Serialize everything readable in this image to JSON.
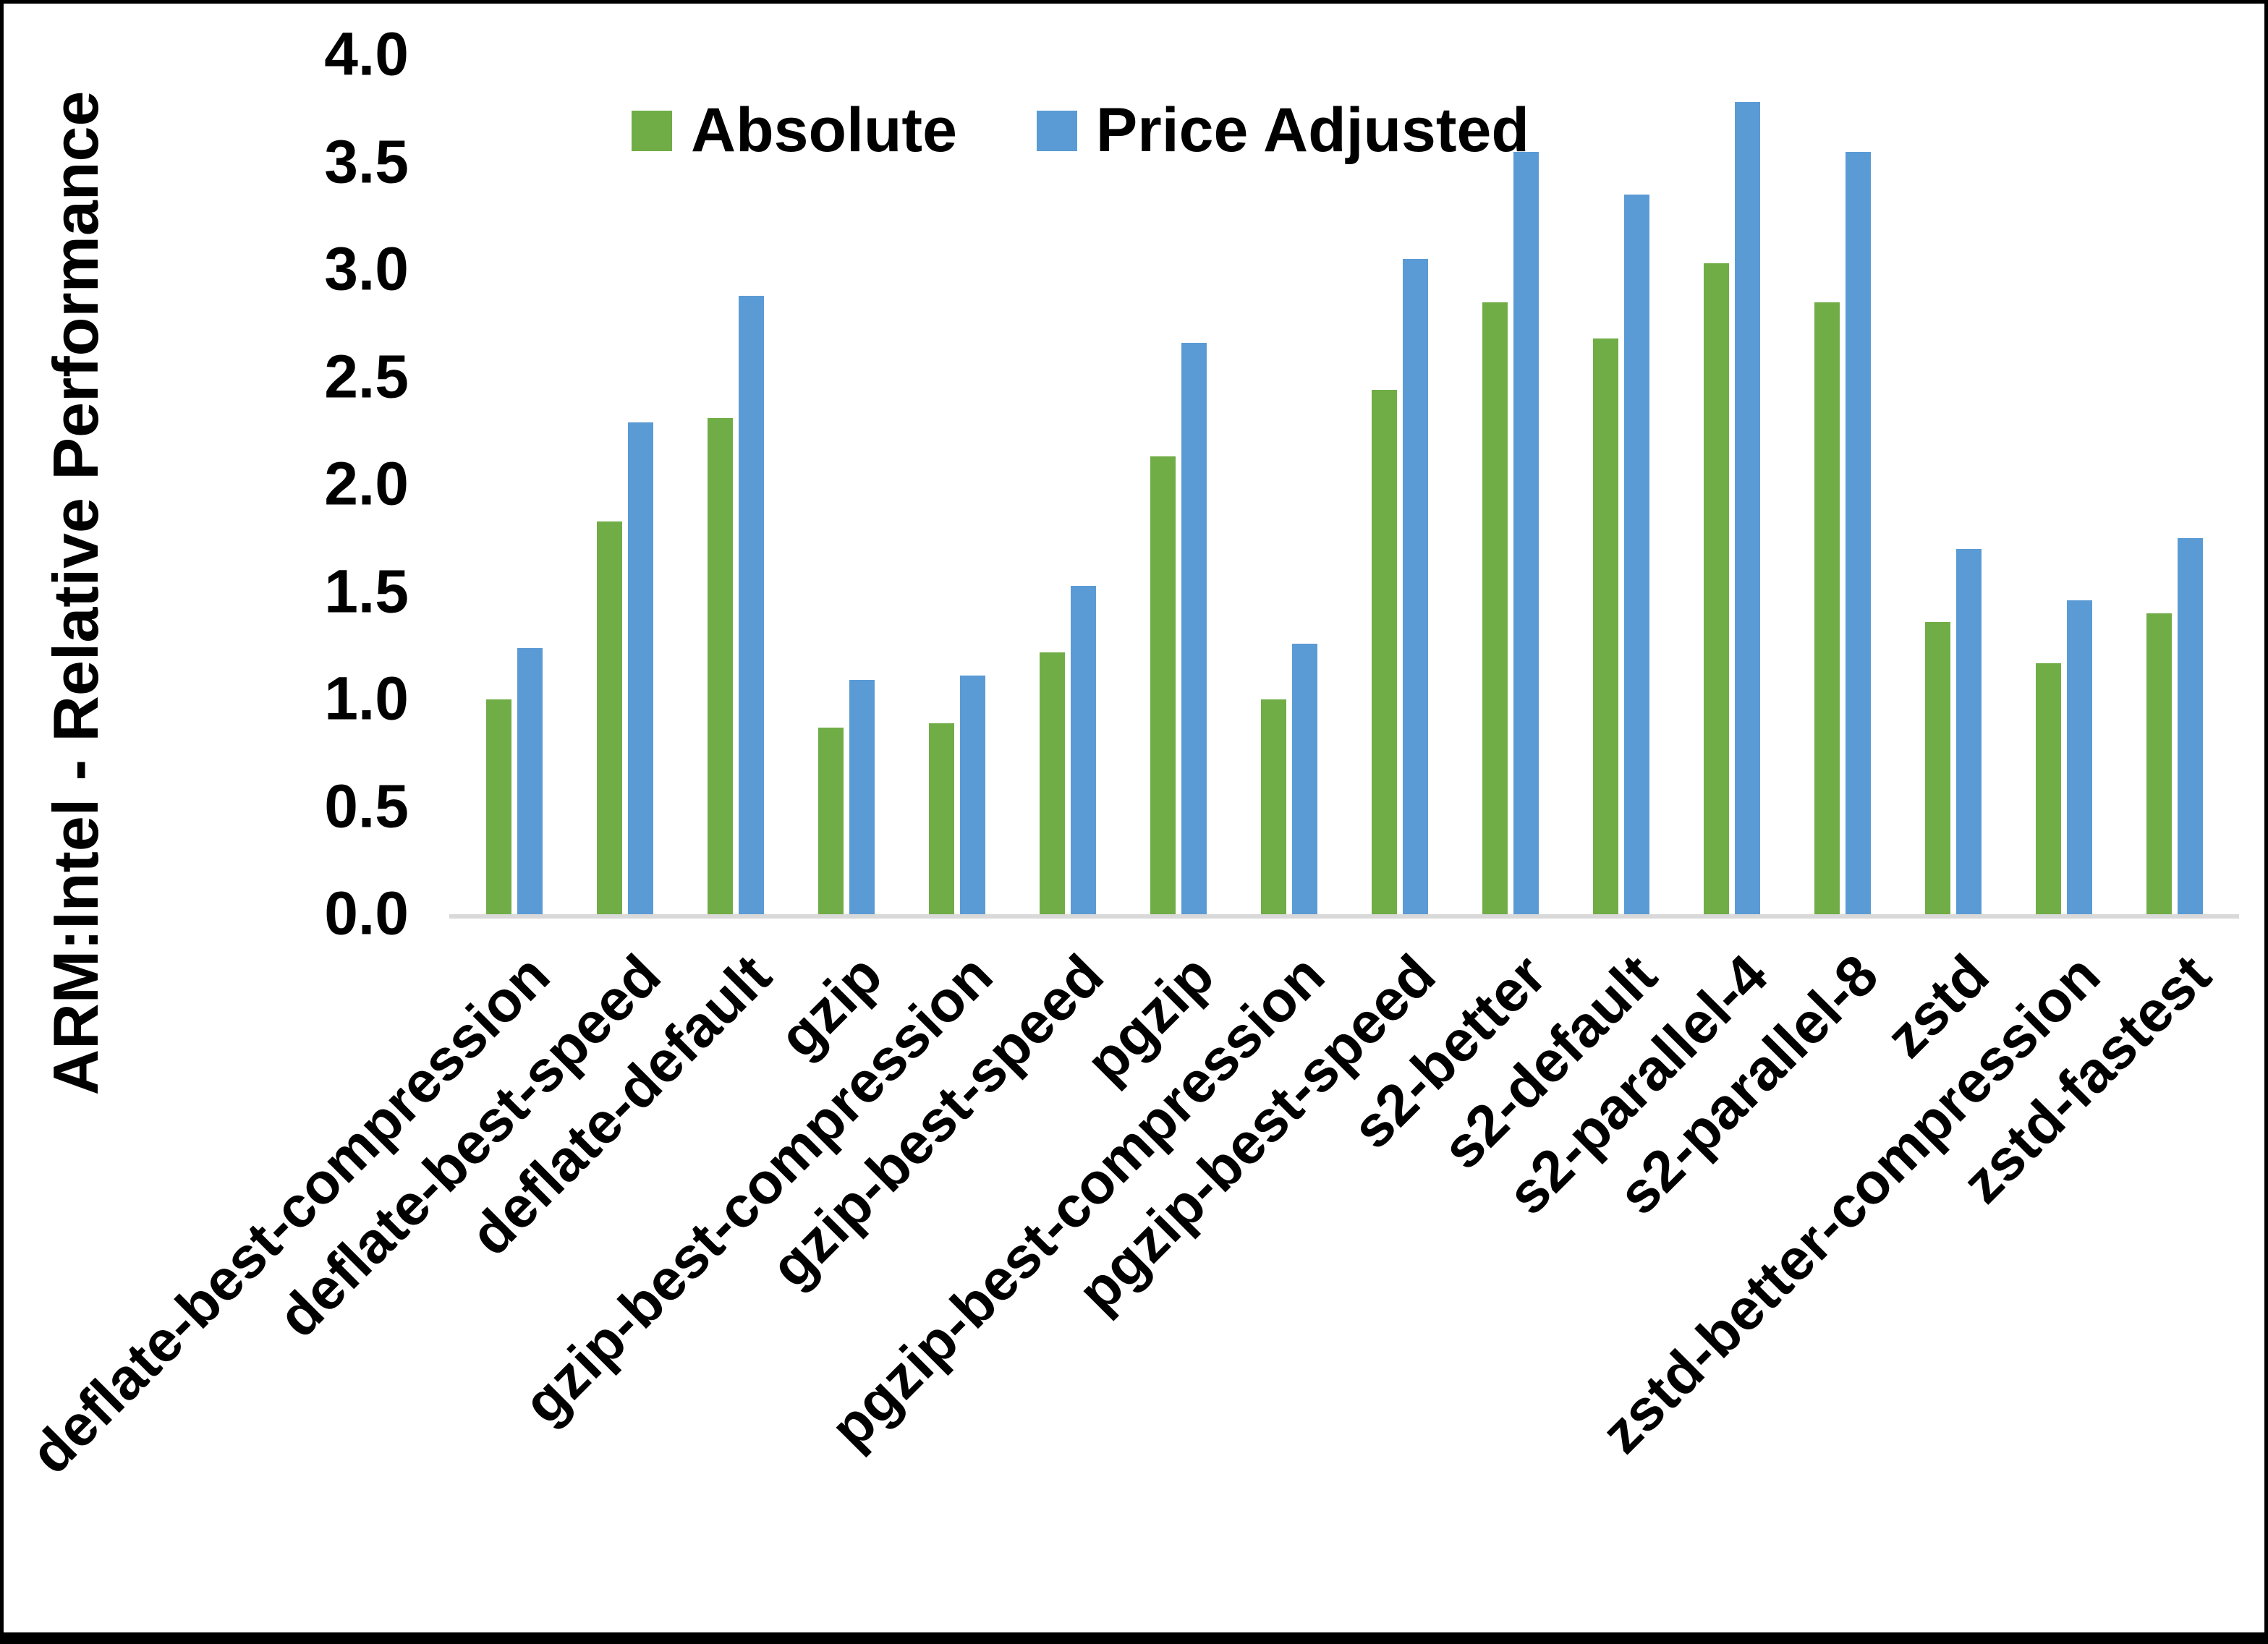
{
  "colors": {
    "absolute_green": "#70AD47",
    "price_adjusted_blue": "#5B9BD5",
    "axis_line_gray": "#D9D9D9",
    "text_black": "#000000",
    "background": "#FFFFFF",
    "frame_border": "#000000"
  },
  "legend": {
    "absolute_label": "Absolute",
    "price_adjusted_label": "Price Adjusted"
  },
  "chart_data": {
    "type": "bar",
    "title": "",
    "xlabel": "",
    "ylabel": "ARM:Intel - Relative Performance",
    "ylim": [
      0.0,
      4.0
    ],
    "ytick_step": 0.5,
    "ytick_labels": [
      "0.0",
      "0.5",
      "1.0",
      "1.5",
      "2.0",
      "2.5",
      "3.0",
      "3.5",
      "4.0"
    ],
    "grid": false,
    "legend_position": "top-center-inside",
    "x_tick_label_rotation_deg": 45,
    "categories": [
      "deflate-best-compression",
      "deflate-best-speed",
      "deflate-default",
      "gzip",
      "gzip-best-compression",
      "gzip-best-speed",
      "pgzip",
      "pgzip-best-compression",
      "pgzip-best-speed",
      "s2-better",
      "s2-default",
      "s2-parallel-4",
      "s2-parallel-8",
      "zstd",
      "zstd-better-compression",
      "zstd-fastest"
    ],
    "series": [
      {
        "name": "Absolute",
        "color": "#70AD47",
        "values": [
          1.0,
          1.83,
          2.31,
          0.87,
          0.89,
          1.22,
          2.13,
          1.0,
          2.44,
          2.85,
          2.68,
          3.03,
          2.85,
          1.36,
          1.17,
          1.4
        ]
      },
      {
        "name": "Price Adjusted",
        "color": "#5B9BD5",
        "values": [
          1.24,
          2.29,
          2.88,
          1.09,
          1.11,
          1.53,
          2.66,
          1.26,
          3.05,
          3.55,
          3.35,
          3.78,
          3.55,
          1.7,
          1.46,
          1.75
        ]
      }
    ]
  }
}
